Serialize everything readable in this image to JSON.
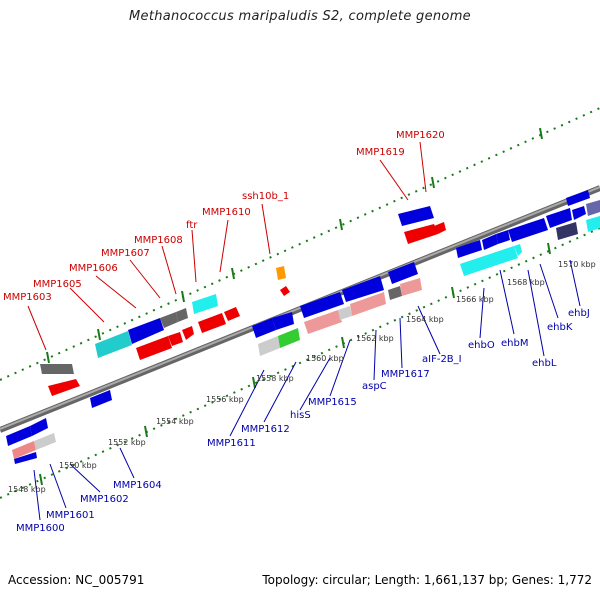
{
  "title": "Methanococcus maripaludis S2, complete genome",
  "footer": {
    "accession": "Accession: NC_005791",
    "summary": "Topology: circular; Length: 1,661,137 bp; Genes: 1,772"
  },
  "colors": {
    "forward_label": "#cc0000",
    "reverse_label": "#0000aa",
    "backbone": "#888888",
    "ticks": "#1a7a1a"
  },
  "top_labels": [
    {
      "text": "MMP1603"
    },
    {
      "text": "MMP1605"
    },
    {
      "text": "MMP1606"
    },
    {
      "text": "MMP1607"
    },
    {
      "text": "MMP1608"
    },
    {
      "text": "ftr"
    },
    {
      "text": "MMP1610"
    },
    {
      "text": "ssh10b_1"
    },
    {
      "text": "MMP1619"
    },
    {
      "text": "MMP1620"
    }
  ],
  "bottom_labels": [
    {
      "text": "MMP1600"
    },
    {
      "text": "MMP1601"
    },
    {
      "text": "MMP1602"
    },
    {
      "text": "MMP1604"
    },
    {
      "text": "MMP1611"
    },
    {
      "text": "MMP1612"
    },
    {
      "text": "hisS"
    },
    {
      "text": "MMP1615"
    },
    {
      "text": "aspC"
    },
    {
      "text": "MMP1617"
    },
    {
      "text": "aIF-2B_I"
    },
    {
      "text": "ehbO"
    },
    {
      "text": "ehbM"
    },
    {
      "text": "ehbL"
    },
    {
      "text": "ehbK"
    },
    {
      "text": "ehbJ"
    }
  ],
  "kbp_labels": [
    "1548 kbp",
    "1550 kbp",
    "1552 kbp",
    "1554 kbp",
    "1556 kbp",
    "1558 kbp",
    "1560 kbp",
    "1562 kbp",
    "1564 kbp",
    "1566 kbp",
    "1568 kbp",
    "1570 kbp"
  ]
}
